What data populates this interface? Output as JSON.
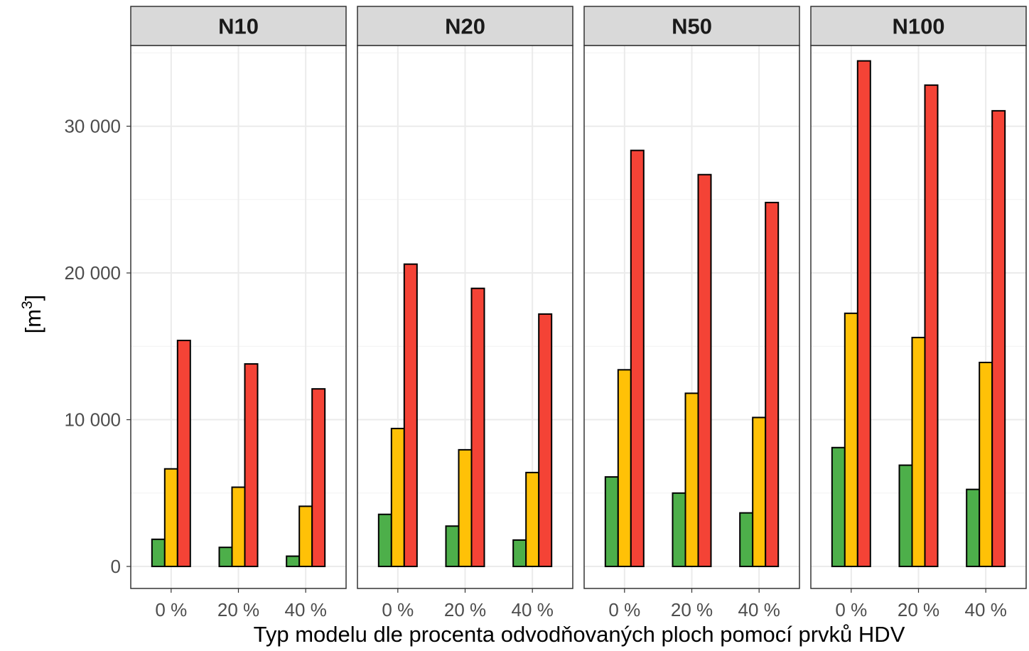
{
  "chart_data": {
    "type": "bar",
    "xlabel": "Typ modelu dle procenta odvodňovaných ploch pomocí prvků HDV",
    "ylabel": "[m",
    "ylabel_superscript": "3",
    "ylabel_close": "]",
    "ylim": [
      -1500,
      35500
    ],
    "yticks": [
      0,
      10000,
      20000,
      30000
    ],
    "ytick_labels": [
      "0",
      "10 000",
      "20 000",
      "30 000"
    ],
    "categories": [
      "0 %",
      "20 %",
      "40 %"
    ],
    "series_colors": [
      "#4DAF4A",
      "#FFC107",
      "#F44336"
    ],
    "grid": true,
    "legend": "none",
    "panels": [
      {
        "title": "N10",
        "series": [
          {
            "values": [
              1850,
              1300,
              700
            ]
          },
          {
            "values": [
              6650,
              5400,
              4100
            ]
          },
          {
            "values": [
              15400,
              13800,
              12100
            ]
          }
        ]
      },
      {
        "title": "N20",
        "series": [
          {
            "values": [
              3550,
              2750,
              1800
            ]
          },
          {
            "values": [
              9400,
              7950,
              6400
            ]
          },
          {
            "values": [
              20600,
              18950,
              17200
            ]
          }
        ]
      },
      {
        "title": "N50",
        "series": [
          {
            "values": [
              6100,
              5000,
              3650
            ]
          },
          {
            "values": [
              13400,
              11800,
              10150
            ]
          },
          {
            "values": [
              28350,
              26700,
              24800
            ]
          }
        ]
      },
      {
        "title": "N100",
        "series": [
          {
            "values": [
              8100,
              6900,
              5250
            ]
          },
          {
            "values": [
              17250,
              15600,
              13900
            ]
          },
          {
            "values": [
              34450,
              32800,
              31050
            ]
          }
        ]
      }
    ]
  }
}
